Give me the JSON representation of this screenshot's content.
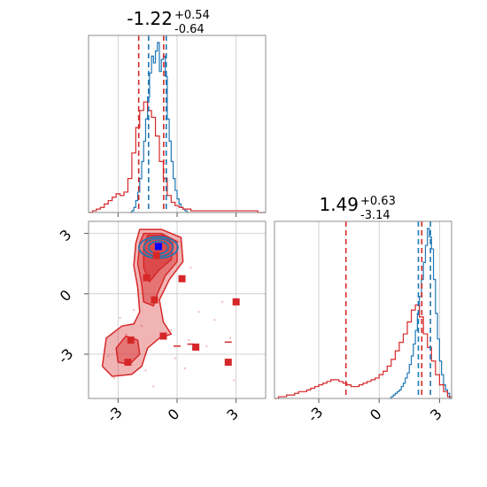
{
  "colors": {
    "blue": "#1f77b4",
    "red": "#d62728",
    "grid": "#c8c8c8",
    "axis": "#8c8c8c",
    "text": "#000000"
  },
  "chart_data": [
    {
      "panel": "top-left",
      "type": "histogram",
      "title": {
        "median": "-1.22",
        "plus": "+0.54",
        "minus": "-0.64"
      },
      "xlim": [
        -4.5,
        4.5
      ],
      "vlines": {
        "red": [
          -1.95,
          -0.68
        ],
        "blue": [
          -1.45,
          -0.55
        ]
      },
      "series": [
        {
          "color": "blue",
          "bin_start": -2.4,
          "bin_width": 0.1,
          "values": [
            0.0,
            0.01,
            0.03,
            0.07,
            0.12,
            0.2,
            0.3,
            0.42,
            0.55,
            0.68,
            0.82,
            0.92,
            0.88,
            0.95,
            1.0,
            0.83,
            0.9,
            0.92,
            0.8,
            0.55,
            0.42,
            0.3,
            0.2,
            0.13,
            0.08,
            0.05,
            0.03,
            0.02,
            0.01,
            0.0
          ]
        },
        {
          "color": "red",
          "bin_start": -4.5,
          "bin_width": 0.2,
          "values": [
            0.0,
            0.01,
            0.02,
            0.03,
            0.05,
            0.07,
            0.09,
            0.11,
            0.1,
            0.12,
            0.2,
            0.35,
            0.5,
            0.6,
            0.65,
            0.6,
            0.56,
            0.45,
            0.3,
            0.2,
            0.1,
            0.06,
            0.04,
            0.03,
            0.02,
            0.02,
            0.01,
            0.01,
            0.01,
            0.01,
            0.01,
            0.01,
            0.01,
            0.01,
            0.01,
            0.01,
            0.01,
            0.01,
            0.01,
            0.01,
            0.01,
            0.01,
            0.01,
            0.0,
            0.0
          ]
        }
      ],
      "xticks": [
        -3,
        0,
        3
      ]
    },
    {
      "panel": "bottom-left",
      "type": "contour-scatter",
      "xlim": [
        -4.5,
        4.5
      ],
      "ylim": [
        -5.2,
        3.6
      ],
      "xticks": [
        "-3",
        "0",
        "3"
      ],
      "yticks": [
        "-3",
        "0",
        "3"
      ],
      "red_points": [
        [
          -1.05,
          1.9
        ],
        [
          -1.55,
          0.8
        ],
        [
          0.25,
          0.75
        ],
        [
          -1.15,
          -0.3
        ],
        [
          -0.7,
          -2.1
        ],
        [
          3.0,
          -0.4
        ],
        [
          -2.35,
          -2.3
        ],
        [
          0.95,
          -2.65
        ],
        [
          -2.5,
          -3.4
        ],
        [
          2.6,
          -3.4
        ]
      ],
      "blue_points": [
        [
          -0.95,
          2.35
        ]
      ]
    },
    {
      "panel": "bottom-right",
      "type": "histogram",
      "title": {
        "median": "1.49",
        "plus": "+0.63",
        "minus": "-3.14"
      },
      "xlim": [
        -5.2,
        3.6
      ],
      "xticks": [
        "-3",
        "0",
        "3"
      ],
      "vlines": {
        "red": [
          -1.65,
          2.12
        ],
        "blue": [
          1.95,
          2.55
        ]
      },
      "series": [
        {
          "color": "blue",
          "bin_start": 0.5,
          "bin_width": 0.1,
          "values": [
            0.0,
            0.01,
            0.02,
            0.03,
            0.04,
            0.05,
            0.07,
            0.09,
            0.12,
            0.15,
            0.2,
            0.25,
            0.32,
            0.4,
            0.5,
            0.6,
            0.7,
            0.8,
            0.9,
            1.0,
            0.95,
            0.88,
            0.7,
            0.5,
            0.35,
            0.22,
            0.14,
            0.08,
            0.05,
            0.03,
            0.0
          ]
        },
        {
          "color": "red",
          "bin_start": -5.2,
          "bin_width": 0.2,
          "values": [
            0.0,
            0.01,
            0.01,
            0.02,
            0.02,
            0.03,
            0.04,
            0.04,
            0.05,
            0.06,
            0.07,
            0.08,
            0.09,
            0.1,
            0.11,
            0.11,
            0.1,
            0.09,
            0.08,
            0.07,
            0.07,
            0.08,
            0.09,
            0.1,
            0.11,
            0.12,
            0.14,
            0.16,
            0.19,
            0.23,
            0.28,
            0.33,
            0.38,
            0.45,
            0.52,
            0.55,
            0.48,
            0.38,
            0.3,
            0.22,
            0.14,
            0.08,
            0.04,
            0.01
          ]
        }
      ]
    }
  ]
}
